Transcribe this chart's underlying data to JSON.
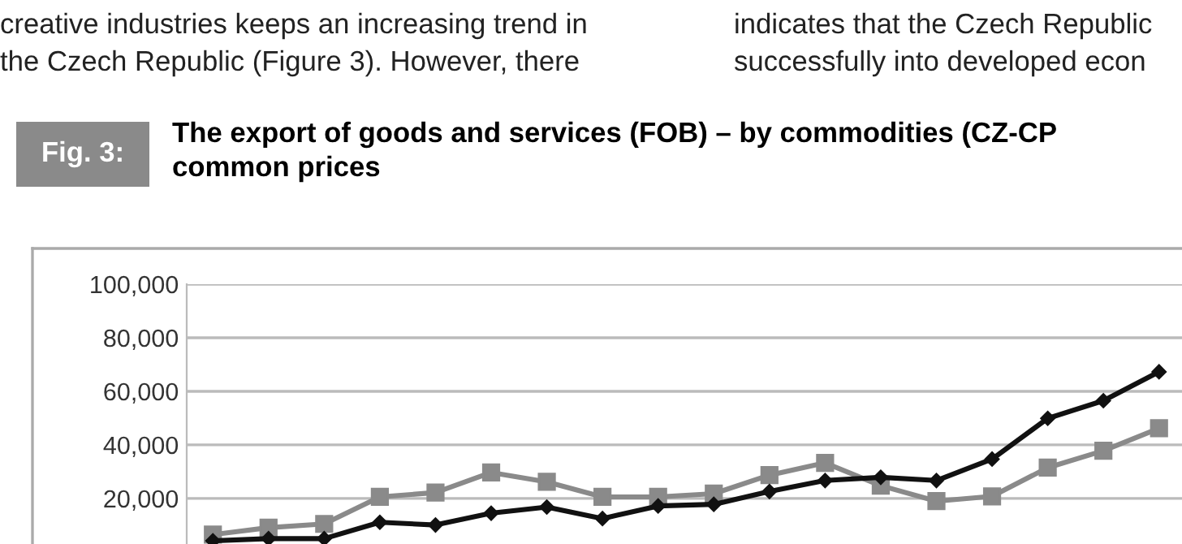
{
  "chart_data": {
    "type": "line",
    "title": "The export of goods and services (FOB) – by commodities (CZ-CP",
    "subtitle": "common prices",
    "annotations": [
      "creative industries keeps an increasing trend in",
      "the Czech Republic (Figure 3). However, there",
      "indicates that the Czech Republic",
      "successfully into developed econ",
      "Fig. 3:"
    ],
    "categories": [
      null,
      null,
      null,
      null,
      null,
      null,
      null,
      null,
      null,
      null,
      null,
      null,
      null,
      null,
      null,
      null,
      null,
      null
    ],
    "series": [
      {
        "color": "#8a8a8a",
        "marker": "square",
        "values": [
          6500,
          9100,
          10500,
          20600,
          22200,
          29700,
          26200,
          20600,
          20600,
          21800,
          28700,
          33300,
          24800,
          19000,
          20800,
          31500,
          37800,
          46200
        ]
      },
      {
        "color": "#111111",
        "marker": "diamond",
        "values": [
          4200,
          5000,
          5000,
          11100,
          10100,
          14500,
          16800,
          12500,
          17200,
          17800,
          22600,
          26700,
          27900,
          26700,
          34700,
          49900,
          56500,
          67300
        ]
      }
    ],
    "ylim": [
      3000,
      100000
    ],
    "yticks": [
      {
        "value": 20000,
        "label": "20,000"
      },
      {
        "value": 40000,
        "label": "40,000"
      },
      {
        "value": 60000,
        "label": "60,000"
      },
      {
        "value": 80000,
        "label": "80,000"
      },
      {
        "value": 100000,
        "label": "100,000"
      }
    ],
    "grid": "y",
    "line_style": "solid"
  }
}
